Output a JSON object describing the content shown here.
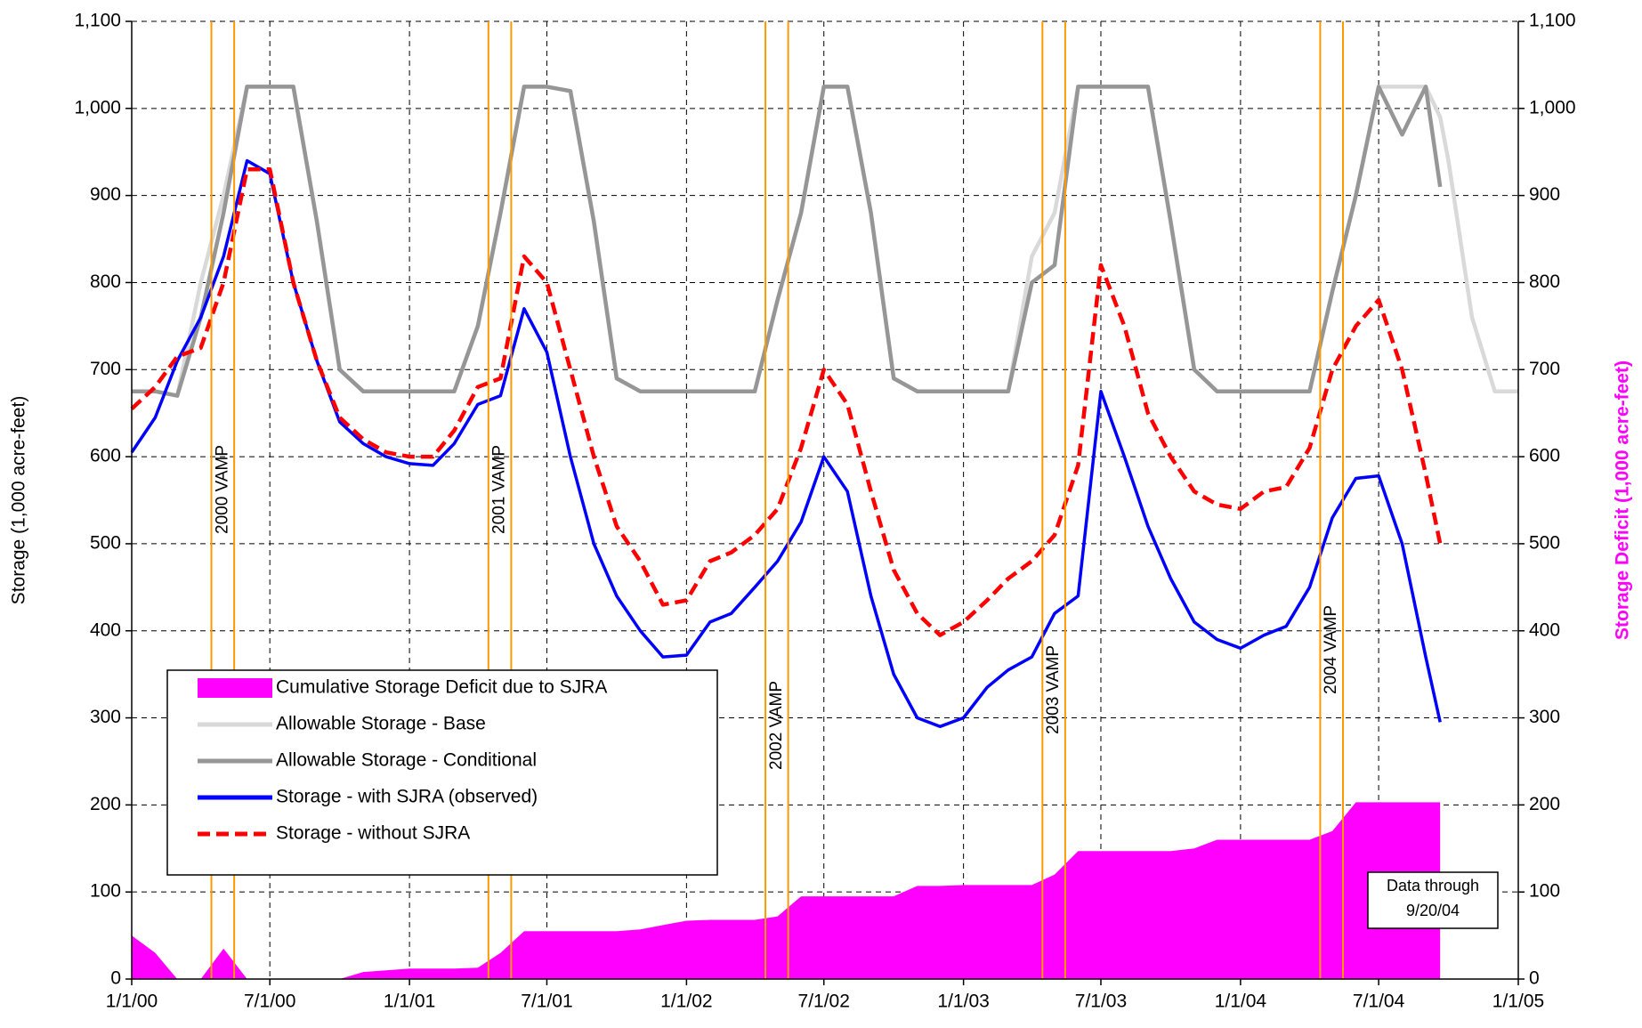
{
  "chart_data": {
    "type": "line",
    "y_label": "Storage (1,000 acre-feet)",
    "y2_label": "Storage Deficit (1,000 acre-feet)",
    "x": [
      "1/1/00",
      "2/1/00",
      "3/1/00",
      "4/1/00",
      "5/1/00",
      "6/1/00",
      "7/1/00",
      "8/1/00",
      "9/1/00",
      "10/1/00",
      "11/1/00",
      "12/1/00",
      "1/1/01",
      "2/1/01",
      "3/1/01",
      "4/1/01",
      "5/1/01",
      "6/1/01",
      "7/1/01",
      "8/1/01",
      "9/1/01",
      "10/1/01",
      "11/1/01",
      "12/1/01",
      "1/1/02",
      "2/1/02",
      "3/1/02",
      "4/1/02",
      "5/1/02",
      "6/1/02",
      "7/1/02",
      "8/1/02",
      "9/1/02",
      "10/1/02",
      "11/1/02",
      "12/1/02",
      "1/1/03",
      "2/1/03",
      "3/1/03",
      "4/1/03",
      "5/1/03",
      "6/1/03",
      "7/1/03",
      "8/1/03",
      "9/1/03",
      "10/1/03",
      "11/1/03",
      "12/1/03",
      "1/1/04",
      "2/1/04",
      "3/1/04",
      "4/1/04",
      "5/1/04",
      "6/1/04",
      "7/1/04",
      "8/1/04",
      "9/1/04",
      "9/20/04",
      "10/1/04",
      "11/1/04",
      "12/1/04",
      "1/1/05"
    ],
    "xlim": [
      "1/1/00",
      "1/1/05"
    ],
    "xticks": [
      "1/1/00",
      "7/1/00",
      "1/1/01",
      "7/1/01",
      "1/1/02",
      "7/1/02",
      "1/1/03",
      "7/1/03",
      "1/1/04",
      "7/1/04",
      "1/1/05"
    ],
    "ylim": [
      0,
      1100
    ],
    "yticks": [
      0,
      100,
      200,
      300,
      400,
      500,
      600,
      700,
      800,
      900,
      {
        "value": 1000,
        "label": "1,000"
      },
      {
        "value": 1100,
        "label": "1,100"
      }
    ],
    "y2lim": [
      0,
      1100
    ],
    "y2ticks": [
      0,
      100,
      200,
      300,
      400,
      500,
      600,
      700,
      800,
      900,
      {
        "value": 1000,
        "label": "1,000"
      },
      {
        "value": 1100,
        "label": "1,100"
      }
    ],
    "grid": true,
    "series": [
      {
        "name": "Cumulative Storage Deficit due to SJRA",
        "type": "area",
        "axis": "y2",
        "color": "#ff00ff",
        "values": [
          50,
          30,
          0,
          0,
          35,
          0,
          0,
          0,
          0,
          0,
          8,
          10,
          12,
          12,
          12,
          13,
          30,
          55,
          55,
          55,
          55,
          55,
          57,
          62,
          67,
          68,
          68,
          68,
          72,
          95,
          95,
          95,
          95,
          95,
          107,
          107,
          108,
          108,
          108,
          108,
          120,
          147,
          147,
          147,
          147,
          147,
          150,
          160,
          160,
          160,
          160,
          160,
          170,
          203,
          203,
          203,
          203,
          203,
          null,
          null,
          null,
          null
        ]
      },
      {
        "name": "Allowable Storage - Base",
        "color": "#d9d9d9",
        "values": [
          675,
          675,
          670,
          800,
          900,
          1025,
          1025,
          1025,
          870,
          700,
          675,
          675,
          675,
          675,
          675,
          750,
          880,
          1025,
          1025,
          1020,
          870,
          690,
          675,
          675,
          675,
          675,
          675,
          675,
          780,
          880,
          1025,
          1025,
          880,
          690,
          675,
          675,
          675,
          675,
          675,
          830,
          880,
          1025,
          1025,
          1025,
          1025,
          870,
          700,
          675,
          675,
          675,
          675,
          675,
          790,
          900,
          1025,
          1025,
          1025,
          990,
          940,
          760,
          675,
          675
        ]
      },
      {
        "name": "Allowable Storage - Conditional",
        "color": "#969696",
        "values": [
          675,
          675,
          670,
          760,
          880,
          1025,
          1025,
          1025,
          870,
          700,
          675,
          675,
          675,
          675,
          675,
          750,
          880,
          1025,
          1025,
          1020,
          870,
          690,
          675,
          675,
          675,
          675,
          675,
          675,
          780,
          880,
          1025,
          1025,
          880,
          690,
          675,
          675,
          675,
          675,
          675,
          800,
          820,
          1025,
          1025,
          1025,
          1025,
          870,
          700,
          675,
          675,
          675,
          675,
          675,
          790,
          900,
          1025,
          970,
          1025,
          910,
          null,
          null,
          null,
          null
        ]
      },
      {
        "name": "Storage - with SJRA (observed)",
        "color": "#0000ff",
        "values": [
          605,
          645,
          710,
          760,
          830,
          940,
          925,
          800,
          710,
          640,
          615,
          600,
          592,
          590,
          615,
          660,
          670,
          770,
          720,
          600,
          500,
          440,
          400,
          370,
          372,
          410,
          420,
          450,
          480,
          525,
          600,
          560,
          440,
          350,
          300,
          290,
          300,
          335,
          355,
          370,
          420,
          440,
          675,
          600,
          520,
          460,
          410,
          390,
          380,
          395,
          405,
          450,
          530,
          575,
          578,
          500,
          370,
          295,
          null,
          null,
          null,
          null
        ]
      },
      {
        "name": "Storage - without SJRA",
        "color": "#ff0000",
        "dashed": true,
        "values": [
          655,
          680,
          715,
          725,
          800,
          930,
          930,
          800,
          710,
          645,
          620,
          605,
          600,
          600,
          630,
          680,
          690,
          830,
          800,
          700,
          600,
          520,
          480,
          430,
          435,
          480,
          490,
          510,
          540,
          610,
          700,
          660,
          560,
          470,
          420,
          395,
          410,
          435,
          460,
          480,
          510,
          590,
          820,
          750,
          650,
          600,
          560,
          545,
          540,
          560,
          565,
          610,
          700,
          750,
          780,
          700,
          580,
          500,
          null,
          null,
          null,
          null
        ]
      }
    ],
    "vamp_periods": [
      {
        "label": "2000 VAMP",
        "start": "4/15/00",
        "end": "5/15/00"
      },
      {
        "label": "2001 VAMP",
        "start": "4/15/01",
        "end": "5/15/01"
      },
      {
        "label": "2002 VAMP",
        "start": "4/15/02",
        "end": "5/15/02"
      },
      {
        "label": "2003 VAMP",
        "start": "4/15/03",
        "end": "5/15/03"
      },
      {
        "label": "2004 VAMP",
        "start": "4/15/04",
        "end": "5/15/04"
      }
    ],
    "vamp_color": "#ff9900",
    "annotation": [
      "Data through",
      "9/20/04"
    ]
  }
}
